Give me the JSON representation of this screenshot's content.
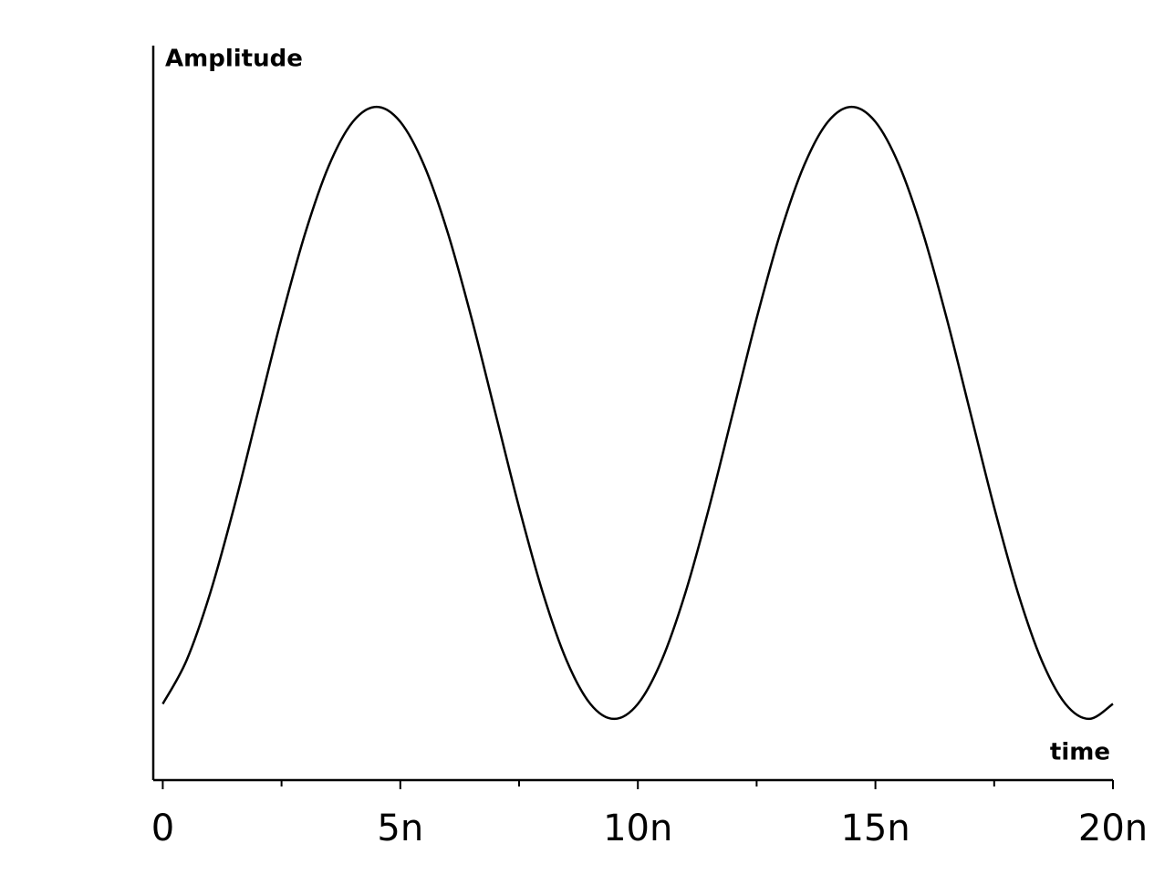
{
  "chart_data": {
    "type": "line",
    "y_label": "Amplitude",
    "x_label": "time",
    "x": [
      0,
      5e-10,
      1e-09,
      1.5e-09,
      2e-09,
      2.5e-09,
      3e-09,
      3.5e-09,
      4e-09,
      4.5e-09,
      5e-09,
      5.5e-09,
      6e-09,
      6.5e-09,
      7e-09,
      7.5e-09,
      8e-09,
      8.5e-09,
      9e-09,
      9.5e-09,
      1e-08,
      1.05e-08,
      1.1e-08,
      1.15e-08,
      1.2e-08,
      1.25e-08,
      1.3e-08,
      1.35e-08,
      1.4e-08,
      1.45e-08,
      1.5e-08,
      1.55e-08,
      1.6e-08,
      1.65e-08,
      1.7e-08,
      1.75e-08,
      1.8e-08,
      1.85e-08,
      1.9e-08,
      1.95e-08,
      2e-08
    ],
    "series": [
      {
        "color": "#000000",
        "values": [
          -0.951,
          -0.809,
          -0.588,
          -0.309,
          0,
          0.309,
          0.588,
          0.809,
          0.951,
          1,
          0.951,
          0.809,
          0.588,
          0.309,
          0,
          -0.309,
          -0.588,
          -0.809,
          -0.951,
          -1,
          -0.951,
          -0.809,
          -0.588,
          -0.309,
          0,
          0.309,
          0.588,
          0.809,
          0.951,
          1,
          0.951,
          0.809,
          0.588,
          0.309,
          0,
          -0.309,
          -0.588,
          -0.809,
          -0.951,
          -1,
          -0.951
        ]
      }
    ],
    "xlim": [
      -2e-10,
      2e-08
    ],
    "ylim": [
      -1.2,
      1.2
    ],
    "xticks": [
      {
        "value": 0,
        "label": "0"
      },
      {
        "value": 5e-09,
        "label": "5n"
      },
      {
        "value": 1e-08,
        "label": "10n"
      },
      {
        "value": 1.5e-08,
        "label": "15n"
      },
      {
        "value": 2e-08,
        "label": "20n"
      }
    ],
    "xminor_ticks": [
      2.5e-09,
      7.5e-09,
      1.25e-08,
      1.75e-08
    ],
    "grid": false
  }
}
